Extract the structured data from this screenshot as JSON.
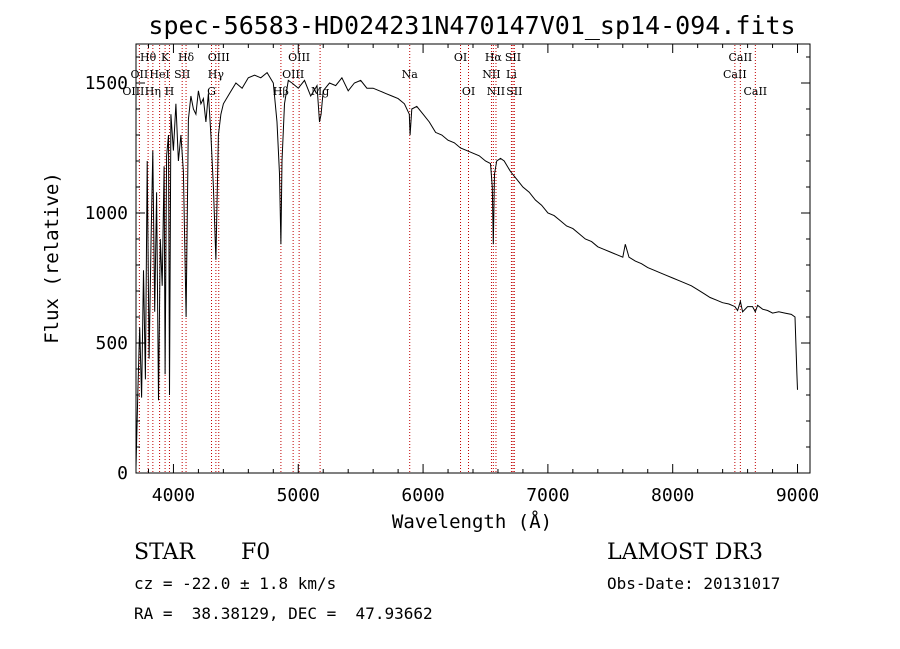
{
  "chart_data": {
    "type": "line",
    "title": "spec-56583-HD024231N470147V01_sp14-094.fits",
    "xlabel": "Wavelength (Å)",
    "ylabel": "Flux (relative)",
    "xlim": [
      3700,
      9100
    ],
    "ylim": [
      0,
      1650
    ],
    "xticks": [
      4000,
      5000,
      6000,
      7000,
      8000,
      9000
    ],
    "yticks": [
      0,
      500,
      1000,
      1500
    ],
    "series": [
      {
        "name": "flux",
        "x": [
          3700,
          3715,
          3730,
          3745,
          3760,
          3775,
          3790,
          3805,
          3820,
          3835,
          3850,
          3865,
          3880,
          3895,
          3910,
          3925,
          3933,
          3945,
          3960,
          3968,
          3980,
          4000,
          4020,
          4040,
          4060,
          4080,
          4101,
          4120,
          4140,
          4160,
          4180,
          4200,
          4220,
          4240,
          4260,
          4280,
          4300,
          4320,
          4340,
          4360,
          4380,
          4400,
          4450,
          4500,
          4550,
          4600,
          4650,
          4700,
          4750,
          4800,
          4830,
          4850,
          4861,
          4870,
          4890,
          4920,
          4950,
          5000,
          5050,
          5100,
          5150,
          5170,
          5183,
          5200,
          5250,
          5300,
          5350,
          5400,
          5450,
          5500,
          5550,
          5600,
          5650,
          5700,
          5750,
          5800,
          5850,
          5890,
          5896,
          5910,
          5950,
          6000,
          6050,
          6100,
          6150,
          6200,
          6250,
          6300,
          6350,
          6400,
          6450,
          6500,
          6540,
          6555,
          6563,
          6572,
          6590,
          6620,
          6650,
          6700,
          6750,
          6800,
          6850,
          6900,
          6950,
          7000,
          7050,
          7100,
          7150,
          7200,
          7250,
          7300,
          7350,
          7400,
          7450,
          7500,
          7550,
          7600,
          7620,
          7650,
          7700,
          7750,
          7800,
          7850,
          7900,
          7950,
          8000,
          8050,
          8100,
          8150,
          8200,
          8250,
          8300,
          8350,
          8400,
          8450,
          8498,
          8520,
          8542,
          8560,
          8600,
          8640,
          8662,
          8680,
          8720,
          8760,
          8800,
          8850,
          8900,
          8950,
          8980,
          8995,
          9000
        ],
        "values": [
          20,
          320,
          560,
          290,
          780,
          360,
          1200,
          440,
          880,
          1240,
          620,
          1080,
          280,
          900,
          720,
          1180,
          380,
          1220,
          1300,
          300,
          1380,
          1240,
          1420,
          1200,
          1300,
          1160,
          600,
          1360,
          1450,
          1400,
          1380,
          1470,
          1420,
          1440,
          1350,
          1460,
          1300,
          1100,
          820,
          1300,
          1380,
          1420,
          1460,
          1500,
          1480,
          1520,
          1530,
          1520,
          1540,
          1500,
          1350,
          1150,
          880,
          1200,
          1420,
          1510,
          1500,
          1480,
          1510,
          1450,
          1490,
          1350,
          1380,
          1470,
          1500,
          1490,
          1520,
          1470,
          1500,
          1510,
          1480,
          1480,
          1470,
          1460,
          1450,
          1440,
          1420,
          1380,
          1300,
          1400,
          1410,
          1380,
          1350,
          1310,
          1300,
          1280,
          1270,
          1250,
          1240,
          1230,
          1220,
          1200,
          1190,
          1100,
          880,
          1150,
          1200,
          1210,
          1200,
          1160,
          1130,
          1100,
          1080,
          1050,
          1030,
          1000,
          990,
          970,
          950,
          940,
          920,
          900,
          890,
          870,
          860,
          850,
          840,
          830,
          880,
          830,
          815,
          805,
          790,
          780,
          770,
          760,
          750,
          740,
          730,
          720,
          705,
          690,
          675,
          665,
          655,
          650,
          640,
          625,
          660,
          620,
          640,
          640,
          620,
          645,
          630,
          625,
          615,
          620,
          615,
          610,
          600,
          380,
          320
        ]
      }
    ],
    "lines": [
      {
        "label": "Hθ",
        "wave": 3797,
        "row": 1,
        "dx": 0
      },
      {
        "label": "OII",
        "wave": 3727,
        "row": 2,
        "dx": 0
      },
      {
        "label": "OIII",
        "wave": 3727,
        "row": 3,
        "dx": -6
      },
      {
        "label": "Hη",
        "wave": 3835,
        "row": 3,
        "dx": 0
      },
      {
        "label": "HeI",
        "wave": 3889,
        "row": 2,
        "dx": 0
      },
      {
        "label": "K",
        "wave": 3933,
        "row": 1,
        "dx": 0
      },
      {
        "label": "H",
        "wave": 3968,
        "row": 3,
        "dx": 0
      },
      {
        "label": "Hδ",
        "wave": 4101,
        "row": 1,
        "dx": 0
      },
      {
        "label": "SII",
        "wave": 4070,
        "row": 2,
        "dx": 0
      },
      {
        "label": "OIII",
        "wave": 4363,
        "row": 1,
        "dx": 0
      },
      {
        "label": "Hγ",
        "wave": 4340,
        "row": 2,
        "dx": 0
      },
      {
        "label": "G",
        "wave": 4305,
        "row": 3,
        "dx": 0
      },
      {
        "label": "OIII",
        "wave": 5007,
        "row": 1,
        "dx": 0
      },
      {
        "label": "OIII",
        "wave": 4959,
        "row": 2,
        "dx": 0
      },
      {
        "label": "Hβ",
        "wave": 4861,
        "row": 3,
        "dx": 0
      },
      {
        "label": "Mg",
        "wave": 5175,
        "row": 3,
        "dx": 0
      },
      {
        "label": "Na",
        "wave": 5893,
        "row": 2,
        "dx": 0
      },
      {
        "label": "OI",
        "wave": 6300,
        "row": 1,
        "dx": 0
      },
      {
        "label": "OI",
        "wave": 6364,
        "row": 3,
        "dx": 0
      },
      {
        "label": "Hα",
        "wave": 6563,
        "row": 1,
        "dx": 0
      },
      {
        "label": "SII",
        "wave": 6720,
        "row": 1,
        "dx": 0
      },
      {
        "label": "NII",
        "wave": 6548,
        "row": 2,
        "dx": 0
      },
      {
        "label": "Li",
        "wave": 6708,
        "row": 2,
        "dx": 0
      },
      {
        "label": "NII",
        "wave": 6584,
        "row": 3,
        "dx": 0
      },
      {
        "label": "SII",
        "wave": 6731,
        "row": 3,
        "dx": 0
      },
      {
        "label": "CaII",
        "wave": 8542,
        "row": 1,
        "dx": 0
      },
      {
        "label": "CaII",
        "wave": 8498,
        "row": 2,
        "dx": 0
      },
      {
        "label": "CaII",
        "wave": 8662,
        "row": 3,
        "dx": 0
      }
    ]
  },
  "info": {
    "object_class": "STAR",
    "subclass": "F0",
    "survey": "LAMOST DR3",
    "redshift_line": "cz = -22.0 ± 1.8 km/s",
    "obs_date_line": "Obs-Date: 20131017",
    "coords_line": "RA =  38.38129, DEC =  47.93662"
  },
  "colors": {
    "spectrum": "#000000",
    "line_marker": "#c00000",
    "axes": "#000000",
    "background": "#ffffff"
  }
}
